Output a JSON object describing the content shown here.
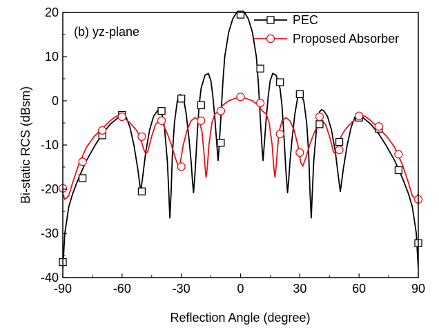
{
  "chart_data": {
    "type": "line",
    "annotation": "(b) yz-plane",
    "xlabel": "Reflection Angle (degree)",
    "ylabel": "Bi-static RCS (dBsm)",
    "xlim": [
      -90,
      90
    ],
    "ylim": [
      -40,
      20
    ],
    "xticks": [
      -90,
      -60,
      -30,
      0,
      30,
      60,
      90
    ],
    "yticks": [
      -40,
      -30,
      -20,
      -10,
      0,
      10,
      20
    ],
    "legend_position": "top-right",
    "grid": false,
    "series": [
      {
        "name": "PEC",
        "color": "#000000",
        "marker": "square",
        "curve": [
          [
            -90,
            -38
          ],
          [
            -89,
            -30
          ],
          [
            -87,
            -24
          ],
          [
            -85,
            -21
          ],
          [
            -82,
            -17.5
          ],
          [
            -78,
            -13.5
          ],
          [
            -74,
            -10.3
          ],
          [
            -70,
            -7.5
          ],
          [
            -66,
            -5.3
          ],
          [
            -62,
            -3.8
          ],
          [
            -60,
            -3.2
          ],
          [
            -58,
            -3.6
          ],
          [
            -56,
            -6
          ],
          [
            -54,
            -10
          ],
          [
            -52,
            -15.5
          ],
          [
            -51,
            -19
          ],
          [
            -50.5,
            -20.5
          ],
          [
            -49.5,
            -17
          ],
          [
            -48,
            -11.5
          ],
          [
            -46,
            -6.5
          ],
          [
            -44,
            -3.5
          ],
          [
            -42,
            -2.2
          ],
          [
            -41,
            -2
          ],
          [
            -40,
            -2.5
          ],
          [
            -38.5,
            -6
          ],
          [
            -37,
            -14
          ],
          [
            -36.3,
            -21
          ],
          [
            -35.8,
            -26.5
          ],
          [
            -35.2,
            -21
          ],
          [
            -34.5,
            -12
          ],
          [
            -33.5,
            -5
          ],
          [
            -32,
            0
          ],
          [
            -30.5,
            1.4
          ],
          [
            -29,
            1
          ],
          [
            -27.5,
            -3
          ],
          [
            -26,
            -9
          ],
          [
            -25,
            -14
          ],
          [
            -24.3,
            -18.5
          ],
          [
            -23.8,
            -20.8
          ],
          [
            -23,
            -16
          ],
          [
            -22,
            -8
          ],
          [
            -21,
            -1.2
          ],
          [
            -20,
            2.8
          ],
          [
            -18,
            5.8
          ],
          [
            -16.3,
            6.2
          ],
          [
            -15,
            4.5
          ],
          [
            -14,
            1
          ],
          [
            -13,
            -4
          ],
          [
            -12,
            -10
          ],
          [
            -11.4,
            -13.5
          ],
          [
            -11,
            -11.5
          ],
          [
            -10,
            -4
          ],
          [
            -9,
            4
          ],
          [
            -8,
            10
          ],
          [
            -6,
            15.5
          ],
          [
            -4,
            18.5
          ],
          [
            -2,
            20
          ],
          [
            0,
            20.5
          ],
          [
            2,
            20
          ],
          [
            4,
            18.5
          ],
          [
            6,
            15.5
          ],
          [
            8,
            10
          ],
          [
            9,
            4
          ],
          [
            10,
            -4
          ],
          [
            11,
            -11.5
          ],
          [
            11.4,
            -13.5
          ],
          [
            12,
            -10
          ],
          [
            13,
            -4
          ],
          [
            14,
            1
          ],
          [
            15,
            4.5
          ],
          [
            16.3,
            6.2
          ],
          [
            18,
            5.8
          ],
          [
            20,
            2.8
          ],
          [
            21,
            -1.2
          ],
          [
            22,
            -8
          ],
          [
            23,
            -16
          ],
          [
            23.8,
            -20.8
          ],
          [
            24.3,
            -18.5
          ],
          [
            25,
            -14
          ],
          [
            26,
            -9
          ],
          [
            27.5,
            -3
          ],
          [
            29,
            1
          ],
          [
            30.5,
            1.4
          ],
          [
            32,
            0
          ],
          [
            33.5,
            -5
          ],
          [
            34.5,
            -12
          ],
          [
            35.2,
            -21
          ],
          [
            35.8,
            -26.5
          ],
          [
            36.3,
            -21
          ],
          [
            37,
            -14
          ],
          [
            38.5,
            -6
          ],
          [
            40,
            -2.5
          ],
          [
            41,
            -2
          ],
          [
            42,
            -2.2
          ],
          [
            44,
            -3.5
          ],
          [
            46,
            -6.5
          ],
          [
            48,
            -11.5
          ],
          [
            49.5,
            -17
          ],
          [
            50.5,
            -20.5
          ],
          [
            51,
            -19
          ],
          [
            52,
            -15.5
          ],
          [
            54,
            -10
          ],
          [
            56,
            -6
          ],
          [
            58,
            -3.6
          ],
          [
            60,
            -3.2
          ],
          [
            62,
            -3.8
          ],
          [
            66,
            -5.3
          ],
          [
            70,
            -7.5
          ],
          [
            74,
            -10.3
          ],
          [
            78,
            -13.5
          ],
          [
            82,
            -17.5
          ],
          [
            85,
            -21
          ],
          [
            87,
            -24
          ],
          [
            89,
            -30
          ],
          [
            90,
            -38
          ]
        ],
        "markers": [
          [
            -90,
            -36.5
          ],
          [
            -80,
            -17.5
          ],
          [
            -70,
            -7.8
          ],
          [
            -60,
            -3.2
          ],
          [
            -50,
            -20.5
          ],
          [
            -40,
            -2.3
          ],
          [
            -30,
            0.5
          ],
          [
            -20,
            -1.0
          ],
          [
            -10,
            -9.5
          ],
          [
            0,
            19.5
          ],
          [
            10,
            7.3
          ],
          [
            20,
            4.2
          ],
          [
            30,
            1.5
          ],
          [
            40,
            -5.3
          ],
          [
            50,
            -9.3
          ],
          [
            60,
            -3.8
          ],
          [
            70,
            -6.3
          ],
          [
            80,
            -15.7
          ],
          [
            90,
            -32.2
          ]
        ]
      },
      {
        "name": "Proposed Absorber",
        "color": "#e8141a",
        "marker": "circle",
        "curve": [
          [
            -90,
            -21
          ],
          [
            -89,
            -22.3
          ],
          [
            -87,
            -21.5
          ],
          [
            -85,
            -18.5
          ],
          [
            -82,
            -14.5
          ],
          [
            -78,
            -10.5
          ],
          [
            -74,
            -8
          ],
          [
            -70,
            -6.3
          ],
          [
            -66,
            -4.5
          ],
          [
            -63,
            -3.5
          ],
          [
            -61,
            -3.3
          ],
          [
            -59,
            -3.8
          ],
          [
            -56,
            -5
          ],
          [
            -53,
            -6.5
          ],
          [
            -51,
            -8
          ],
          [
            -49,
            -11
          ],
          [
            -48,
            -12
          ],
          [
            -47,
            -11.5
          ],
          [
            -45,
            -8
          ],
          [
            -43,
            -5.3
          ],
          [
            -41,
            -4.5
          ],
          [
            -39,
            -5.5
          ],
          [
            -37,
            -7.5
          ],
          [
            -35,
            -10
          ],
          [
            -33,
            -13
          ],
          [
            -31.5,
            -14.8
          ],
          [
            -30.5,
            -14
          ],
          [
            -29,
            -10
          ],
          [
            -27,
            -6.5
          ],
          [
            -25,
            -4.5
          ],
          [
            -23,
            -3.8
          ],
          [
            -21,
            -4.5
          ],
          [
            -19.5,
            -7
          ],
          [
            -18.5,
            -12
          ],
          [
            -17.8,
            -16
          ],
          [
            -17.4,
            -17.3
          ],
          [
            -16.8,
            -15
          ],
          [
            -16,
            -10
          ],
          [
            -14.5,
            -5
          ],
          [
            -13,
            -3
          ],
          [
            -11,
            -2.3
          ],
          [
            -9,
            -1
          ],
          [
            -6,
            0
          ],
          [
            -3,
            0.5
          ],
          [
            0,
            0.9
          ],
          [
            3,
            0.5
          ],
          [
            6,
            0
          ],
          [
            9,
            -1
          ],
          [
            11,
            -2.3
          ],
          [
            13,
            -3
          ],
          [
            14.5,
            -5
          ],
          [
            16,
            -10
          ],
          [
            16.8,
            -15
          ],
          [
            17.4,
            -17.3
          ],
          [
            17.8,
            -16
          ],
          [
            18.5,
            -12
          ],
          [
            19.5,
            -7
          ],
          [
            21,
            -4.5
          ],
          [
            23,
            -3.8
          ],
          [
            25,
            -4.5
          ],
          [
            27,
            -6.5
          ],
          [
            29,
            -10
          ],
          [
            30.5,
            -14
          ],
          [
            31.5,
            -14.8
          ],
          [
            33,
            -13
          ],
          [
            35,
            -10
          ],
          [
            37,
            -7.5
          ],
          [
            39,
            -5.5
          ],
          [
            41,
            -4.5
          ],
          [
            43,
            -5.3
          ],
          [
            45,
            -8
          ],
          [
            47,
            -11.5
          ],
          [
            48,
            -12
          ],
          [
            49,
            -11
          ],
          [
            51,
            -8
          ],
          [
            53,
            -6.5
          ],
          [
            56,
            -5
          ],
          [
            59,
            -3.8
          ],
          [
            61,
            -3.3
          ],
          [
            63,
            -3.5
          ],
          [
            66,
            -4.5
          ],
          [
            70,
            -6.3
          ],
          [
            74,
            -8
          ],
          [
            78,
            -10.5
          ],
          [
            82,
            -14.5
          ],
          [
            85,
            -18.5
          ],
          [
            87,
            -21.5
          ],
          [
            89,
            -22.3
          ],
          [
            90,
            -21
          ]
        ],
        "markers": [
          [
            -90,
            -19.8
          ],
          [
            -80,
            -13.8
          ],
          [
            -70,
            -6.7
          ],
          [
            -60,
            -3.6
          ],
          [
            -50,
            -8.1
          ],
          [
            -40,
            -4.5
          ],
          [
            -30,
            -14.9
          ],
          [
            -20,
            -4.5
          ],
          [
            -10,
            -2.3
          ],
          [
            0,
            0.9
          ],
          [
            10,
            -0.5
          ],
          [
            20,
            -7.5
          ],
          [
            30,
            -11.7
          ],
          [
            40,
            -3.6
          ],
          [
            50,
            -11.1
          ],
          [
            60,
            -3.4
          ],
          [
            70,
            -5.8
          ],
          [
            80,
            -12.1
          ],
          [
            90,
            -22.3
          ]
        ]
      }
    ]
  }
}
